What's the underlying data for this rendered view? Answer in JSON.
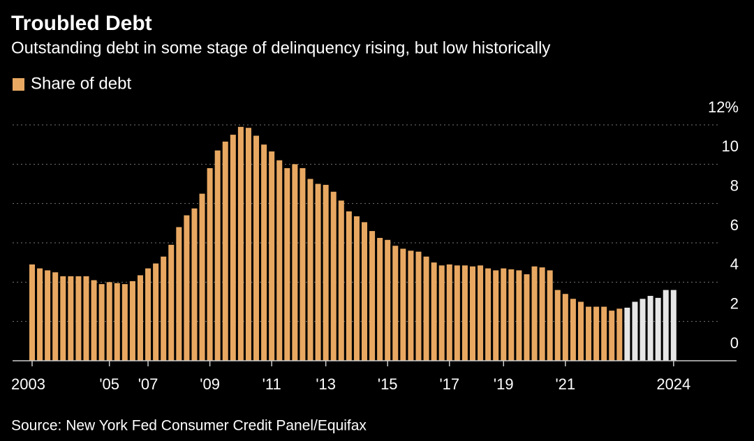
{
  "chart_data": {
    "type": "bar",
    "title": "Troubled Debt",
    "subtitle": "Outstanding debt in some stage of delinquency rising, but low historically",
    "source": "Source: New York Fed Consumer Credit Panel/Equifax",
    "categories": [
      "2003",
      null,
      null,
      null,
      null,
      null,
      null,
      null,
      null,
      null,
      "'05",
      null,
      null,
      null,
      null,
      "'07",
      null,
      null,
      null,
      null,
      null,
      null,
      null,
      "'09",
      null,
      null,
      null,
      null,
      null,
      null,
      null,
      "'11",
      null,
      null,
      null,
      null,
      null,
      null,
      "'13",
      null,
      null,
      null,
      null,
      null,
      null,
      null,
      "'15",
      null,
      null,
      null,
      null,
      null,
      null,
      null,
      "'17",
      null,
      null,
      null,
      null,
      null,
      null,
      "'19",
      null,
      null,
      null,
      null,
      null,
      null,
      null,
      "'21",
      null,
      null,
      null,
      null,
      null,
      null,
      null,
      null,
      null,
      null,
      null,
      null,
      null,
      "2024"
    ],
    "series": [
      {
        "name": "Share of debt",
        "color": "#e8a862",
        "values": [
          4.9,
          4.7,
          4.6,
          4.5,
          4.3,
          4.3,
          4.3,
          4.3,
          4.1,
          3.9,
          4.0,
          3.95,
          3.9,
          4.05,
          4.35,
          4.7,
          4.95,
          5.3,
          5.9,
          6.8,
          7.4,
          7.75,
          8.5,
          9.8,
          10.7,
          11.15,
          11.5,
          11.9,
          11.85,
          11.45,
          11.0,
          10.65,
          10.2,
          9.8,
          10.0,
          9.8,
          9.25,
          9.0,
          8.95,
          8.6,
          8.15,
          7.6,
          7.35,
          7.05,
          6.6,
          6.25,
          6.15,
          5.85,
          5.7,
          5.6,
          5.55,
          5.3,
          5.0,
          4.85,
          4.9,
          4.85,
          4.85,
          4.8,
          4.85,
          4.7,
          4.6,
          4.7,
          4.65,
          4.6,
          4.4,
          4.8,
          4.75,
          4.6,
          3.6,
          3.4,
          3.15,
          3.0,
          2.75,
          2.75,
          2.75,
          2.55,
          2.65,
          2.7,
          3.0,
          3.15,
          3.3,
          3.2,
          3.6,
          3.6
        ],
        "colors": [
          "#e8a862",
          "#e8a862",
          "#e8a862",
          "#e8a862",
          "#e8a862",
          "#e8a862",
          "#e8a862",
          "#e8a862",
          "#e8a862",
          "#e8a862",
          "#e8a862",
          "#e8a862",
          "#e8a862",
          "#e8a862",
          "#e8a862",
          "#e8a862",
          "#e8a862",
          "#e8a862",
          "#e8a862",
          "#e8a862",
          "#e8a862",
          "#e8a862",
          "#e8a862",
          "#e8a862",
          "#e8a862",
          "#e8a862",
          "#e8a862",
          "#e8a862",
          "#e8a862",
          "#e8a862",
          "#e8a862",
          "#e8a862",
          "#e8a862",
          "#e8a862",
          "#e8a862",
          "#e8a862",
          "#e8a862",
          "#e8a862",
          "#e8a862",
          "#e8a862",
          "#e8a862",
          "#e8a862",
          "#e8a862",
          "#e8a862",
          "#e8a862",
          "#e8a862",
          "#e8a862",
          "#e8a862",
          "#e8a862",
          "#e8a862",
          "#e8a862",
          "#e8a862",
          "#e8a862",
          "#e8a862",
          "#e8a862",
          "#e8a862",
          "#e8a862",
          "#e8a862",
          "#e8a862",
          "#e8a862",
          "#e8a862",
          "#e8a862",
          "#e8a862",
          "#e8a862",
          "#e8a862",
          "#e8a862",
          "#e8a862",
          "#e8a862",
          "#e8a862",
          "#e8a862",
          "#e8a862",
          "#e8a862",
          "#e8a862",
          "#e8a862",
          "#e8a862",
          "#e8a862",
          "#e8a862",
          "#e6e6e6",
          "#e6e6e6",
          "#e6e6e6",
          "#e6e6e6",
          "#e6e6e6",
          "#e6e6e6",
          "#e6e6e6"
        ]
      }
    ],
    "ylim": [
      0,
      12
    ],
    "yticks": [
      0,
      2,
      4,
      6,
      8,
      10,
      {
        "value": 12,
        "label": "12%"
      }
    ],
    "grid": true
  }
}
